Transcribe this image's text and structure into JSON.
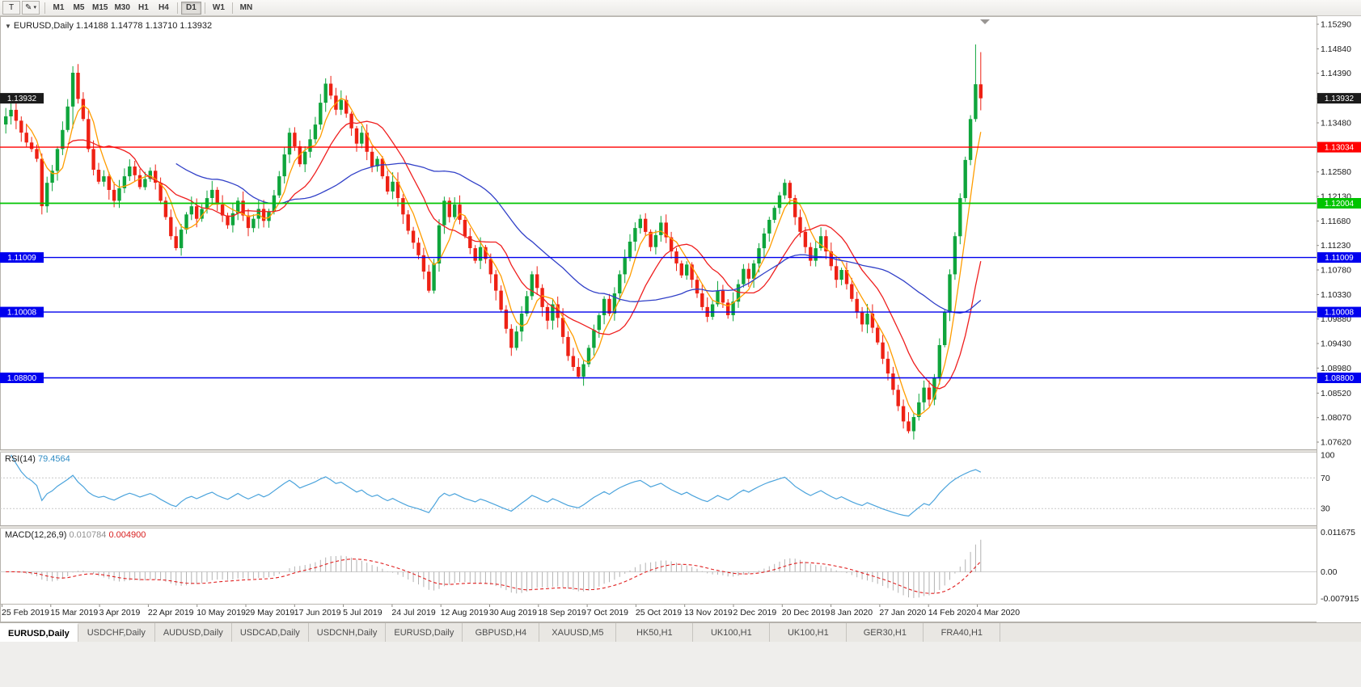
{
  "toolbar": {
    "icons": [
      {
        "name": "template-icon",
        "glyph": "T"
      },
      {
        "name": "drawing-tool-icon",
        "glyph": "✎"
      }
    ],
    "timeframes": [
      "M1",
      "M5",
      "M15",
      "M30",
      "H1",
      "H4",
      "D1",
      "W1",
      "MN"
    ],
    "active_timeframe": "D1"
  },
  "chart_header": {
    "arrow": "▼",
    "text": "EURUSD,Daily 1.14188 1.14778 1.13710 1.13932"
  },
  "symbol_tabs": [
    "EURUSD,Daily",
    "USDCHF,Daily",
    "AUDUSD,Daily",
    "USDCAD,Daily",
    "USDCNH,Daily",
    "EURUSD,Daily",
    "GBPUSD,H4",
    "XAUUSD,M5",
    "HK50,H1",
    "UK100,H1",
    "UK100,H1",
    "GER30,H1",
    "FRA40,H1"
  ],
  "active_tab": "EURUSD,Daily",
  "chart_data": {
    "type": "candlestick",
    "symbol": "EURUSD",
    "timeframe": "Daily",
    "scale": {
      "v_top": 1.15409,
      "v_bottom": 1.07487
    },
    "y_ticks": [
      "1.15290",
      "1.14840",
      "1.14390",
      "1.13930",
      "1.13480",
      "1.13030",
      "1.12580",
      "1.12130",
      "1.11680",
      "1.11230",
      "1.10780",
      "1.10330",
      "1.09880",
      "1.09430",
      "1.08980",
      "1.08520",
      "1.08070",
      "1.07620"
    ],
    "x_labels": [
      "25 Feb 2019",
      "15 Mar 2019",
      "3 Apr 2019",
      "22 Apr 2019",
      "10 May 2019",
      "29 May 2019",
      "17 Jun 2019",
      "5 Jul 2019",
      "24 Jul 2019",
      "12 Aug 2019",
      "30 Aug 2019",
      "18 Sep 2019",
      "7 Oct 2019",
      "25 Oct 2019",
      "13 Nov 2019",
      "2 Dec 2019",
      "20 Dec 2019",
      "8 Jan 2020",
      "27 Jan 2020",
      "14 Feb 2020",
      "4 Mar 2020"
    ],
    "open_first": 1.1345,
    "wick_base": 0.0011,
    "closes": [
      1.136,
      1.1372,
      1.1352,
      1.133,
      1.1312,
      1.13,
      1.1282,
      1.1195,
      1.1238,
      1.126,
      1.13,
      1.1335,
      1.1378,
      1.144,
      1.1392,
      1.1355,
      1.13,
      1.1262,
      1.124,
      1.125,
      1.1225,
      1.1205,
      1.1228,
      1.125,
      1.1268,
      1.1252,
      1.123,
      1.1245,
      1.126,
      1.1238,
      1.1205,
      1.1175,
      1.114,
      1.1118,
      1.1152,
      1.118,
      1.1195,
      1.1172,
      1.119,
      1.121,
      1.1225,
      1.1198,
      1.1178,
      1.116,
      1.1182,
      1.1205,
      1.1178,
      1.1155,
      1.1172,
      1.119,
      1.1168,
      1.1185,
      1.1215,
      1.125,
      1.129,
      1.133,
      1.1305,
      1.1272,
      1.1295,
      1.1318,
      1.1345,
      1.1385,
      1.142,
      1.1398,
      1.1372,
      1.139,
      1.1365,
      1.1338,
      1.131,
      1.133,
      1.1295,
      1.1268,
      1.1282,
      1.125,
      1.1222,
      1.124,
      1.121,
      1.118,
      1.115,
      1.1128,
      1.1105,
      1.1075,
      1.104,
      1.109,
      1.116,
      1.1205,
      1.1175,
      1.1198,
      1.117,
      1.114,
      1.1118,
      1.1095,
      1.112,
      1.1098,
      1.107,
      1.104,
      1.1005,
      1.097,
      1.0935,
      1.0965,
      1.0998,
      1.103,
      1.107,
      1.1045,
      1.101,
      1.0985,
      1.1015,
      1.099,
      1.0955,
      1.092,
      1.09,
      1.0882,
      1.0905,
      1.0935,
      1.0968,
      1.0995,
      1.1025,
      1.0998,
      1.1035,
      1.107,
      1.11,
      1.113,
      1.1155,
      1.1172,
      1.1148,
      1.112,
      1.1142,
      1.1165,
      1.1138,
      1.1112,
      1.109,
      1.1068,
      1.1088,
      1.106,
      1.1035,
      1.101,
      1.0992,
      1.1015,
      1.104,
      1.1018,
      1.0995,
      1.102,
      1.1052,
      1.108,
      1.1062,
      1.109,
      1.1118,
      1.1145,
      1.117,
      1.1192,
      1.1215,
      1.1238,
      1.121,
      1.1175,
      1.1148,
      1.112,
      1.1095,
      1.1118,
      1.114,
      1.1112,
      1.1085,
      1.106,
      1.1078,
      1.1052,
      1.1025,
      1.1,
      1.0978,
      1.0998,
      1.0972,
      1.0945,
      1.0915,
      1.0888,
      1.0858,
      1.0828,
      1.08,
      1.0782,
      1.0808,
      1.0835,
      1.0862,
      1.084,
      1.088,
      1.094,
      1.1,
      1.107,
      1.114,
      1.121,
      1.128,
      1.1355,
      1.1419,
      1.1393
    ],
    "candle_overrides": {
      "7": [
        1.1282,
        1.1292,
        1.118,
        1.1195
      ],
      "13": [
        1.1378,
        1.1452,
        1.1338,
        1.144
      ],
      "111": [
        1.09,
        1.0916,
        1.0879,
        1.0882
      ],
      "175": [
        1.08,
        1.0817,
        1.0778,
        1.0782
      ],
      "188": [
        1.1355,
        1.1492,
        1.135,
        1.1419
      ],
      "189": [
        1.14188,
        1.14778,
        1.1371,
        1.13932
      ]
    },
    "last_price": {
      "value": "1.13932",
      "color": "#1b1b1b",
      "left_label": true
    },
    "hlines": [
      {
        "value": 1.13034,
        "label": "1.13034",
        "color": "#ff0000",
        "left_label": false,
        "width": 1.4
      },
      {
        "value": 1.12004,
        "label": "1.12004",
        "color": "#00c400",
        "left_label": false,
        "width": 1.8
      },
      {
        "value": 1.11009,
        "label": "1.11009",
        "color": "#0000ee",
        "left_label": true,
        "width": 1.4
      },
      {
        "value": 1.10008,
        "label": "1.10008",
        "color": "#0000ee",
        "left_label": true,
        "width": 1.4
      },
      {
        "value": 1.088,
        "label": "1.08800",
        "color": "#0000ee",
        "left_label": true,
        "width": 1.4
      }
    ],
    "moving_averages": [
      {
        "period": 5,
        "color": "#ff9d00"
      },
      {
        "period": 13,
        "color": "#ef1f1f"
      },
      {
        "period": 34,
        "color": "#3140c8"
      }
    ],
    "colors": {
      "up": "#0fa53c",
      "down": "#ee2114",
      "bg": "#ffffff",
      "axis_text": "#1a1a1a"
    },
    "rsi": {
      "label": "RSI(14)",
      "value": "79.4564",
      "period": 14,
      "color": "#4aa3dc",
      "range": [
        8,
        103
      ],
      "levels": [
        {
          "v": 100,
          "label": "100",
          "line": false
        },
        {
          "v": 70,
          "label": "70",
          "line": true
        },
        {
          "v": 30,
          "label": "30",
          "line": true
        }
      ]
    },
    "macd": {
      "label": "MACD(12,26,9)",
      "value_main": "0.010784",
      "value_signal": "0.004900",
      "fast": 12,
      "slow": 26,
      "signal": 9,
      "hist_color": "#b2b2b2",
      "signal_color": "#e02020",
      "range": [
        -0.0092,
        0.0128
      ],
      "axis_labels": [
        {
          "v": 0.011675,
          "label": "0.011675"
        },
        {
          "v": 0,
          "label": "0.00"
        },
        {
          "v": -0.007915,
          "label": "-0.007915"
        }
      ]
    }
  }
}
